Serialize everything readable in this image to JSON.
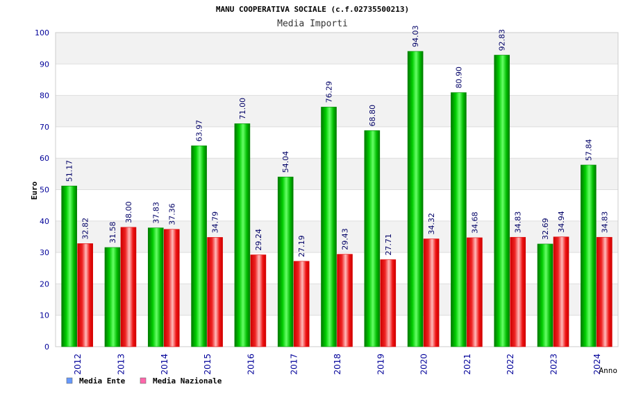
{
  "chart_data": {
    "type": "bar",
    "title": "MANU COOPERATIVA SOCIALE (c.f.02735500213)",
    "subtitle": "Media Importi",
    "xlabel": "Anno",
    "ylabel": "Euro",
    "ylim": [
      0,
      100
    ],
    "yticks": [
      0,
      10,
      20,
      30,
      40,
      50,
      60,
      70,
      80,
      90,
      100
    ],
    "grid": true,
    "legend_position": "bottom-left",
    "categories": [
      "2012",
      "2013",
      "2014",
      "2015",
      "2016",
      "2017",
      "2018",
      "2019",
      "2020",
      "2021",
      "2022",
      "2023",
      "2024"
    ],
    "series": [
      {
        "name": "Media Ente",
        "color": "#00aa00",
        "legend_color": "#6699ff",
        "values": [
          51.17,
          31.58,
          37.83,
          63.97,
          71.0,
          54.04,
          76.29,
          68.8,
          94.03,
          80.9,
          92.83,
          32.69,
          57.84
        ],
        "labels": [
          "51.17",
          "31.58",
          "37.83",
          "63.97",
          "71.00",
          "54.04",
          "76.29",
          "68.80",
          "94.03",
          "80.90",
          "92.83",
          "32.69",
          "57.84"
        ]
      },
      {
        "name": "Media Nazionale",
        "color": "#ee0000",
        "legend_color": "#ff66aa",
        "values": [
          32.82,
          38.0,
          37.36,
          34.79,
          29.24,
          27.19,
          29.43,
          27.71,
          34.32,
          34.68,
          34.83,
          34.94,
          34.83
        ],
        "labels": [
          "32.82",
          "38.00",
          "37.36",
          "34.79",
          "29.24",
          "27.19",
          "29.43",
          "27.71",
          "34.32",
          "34.68",
          "34.83",
          "34.94",
          "34.83"
        ]
      }
    ]
  }
}
